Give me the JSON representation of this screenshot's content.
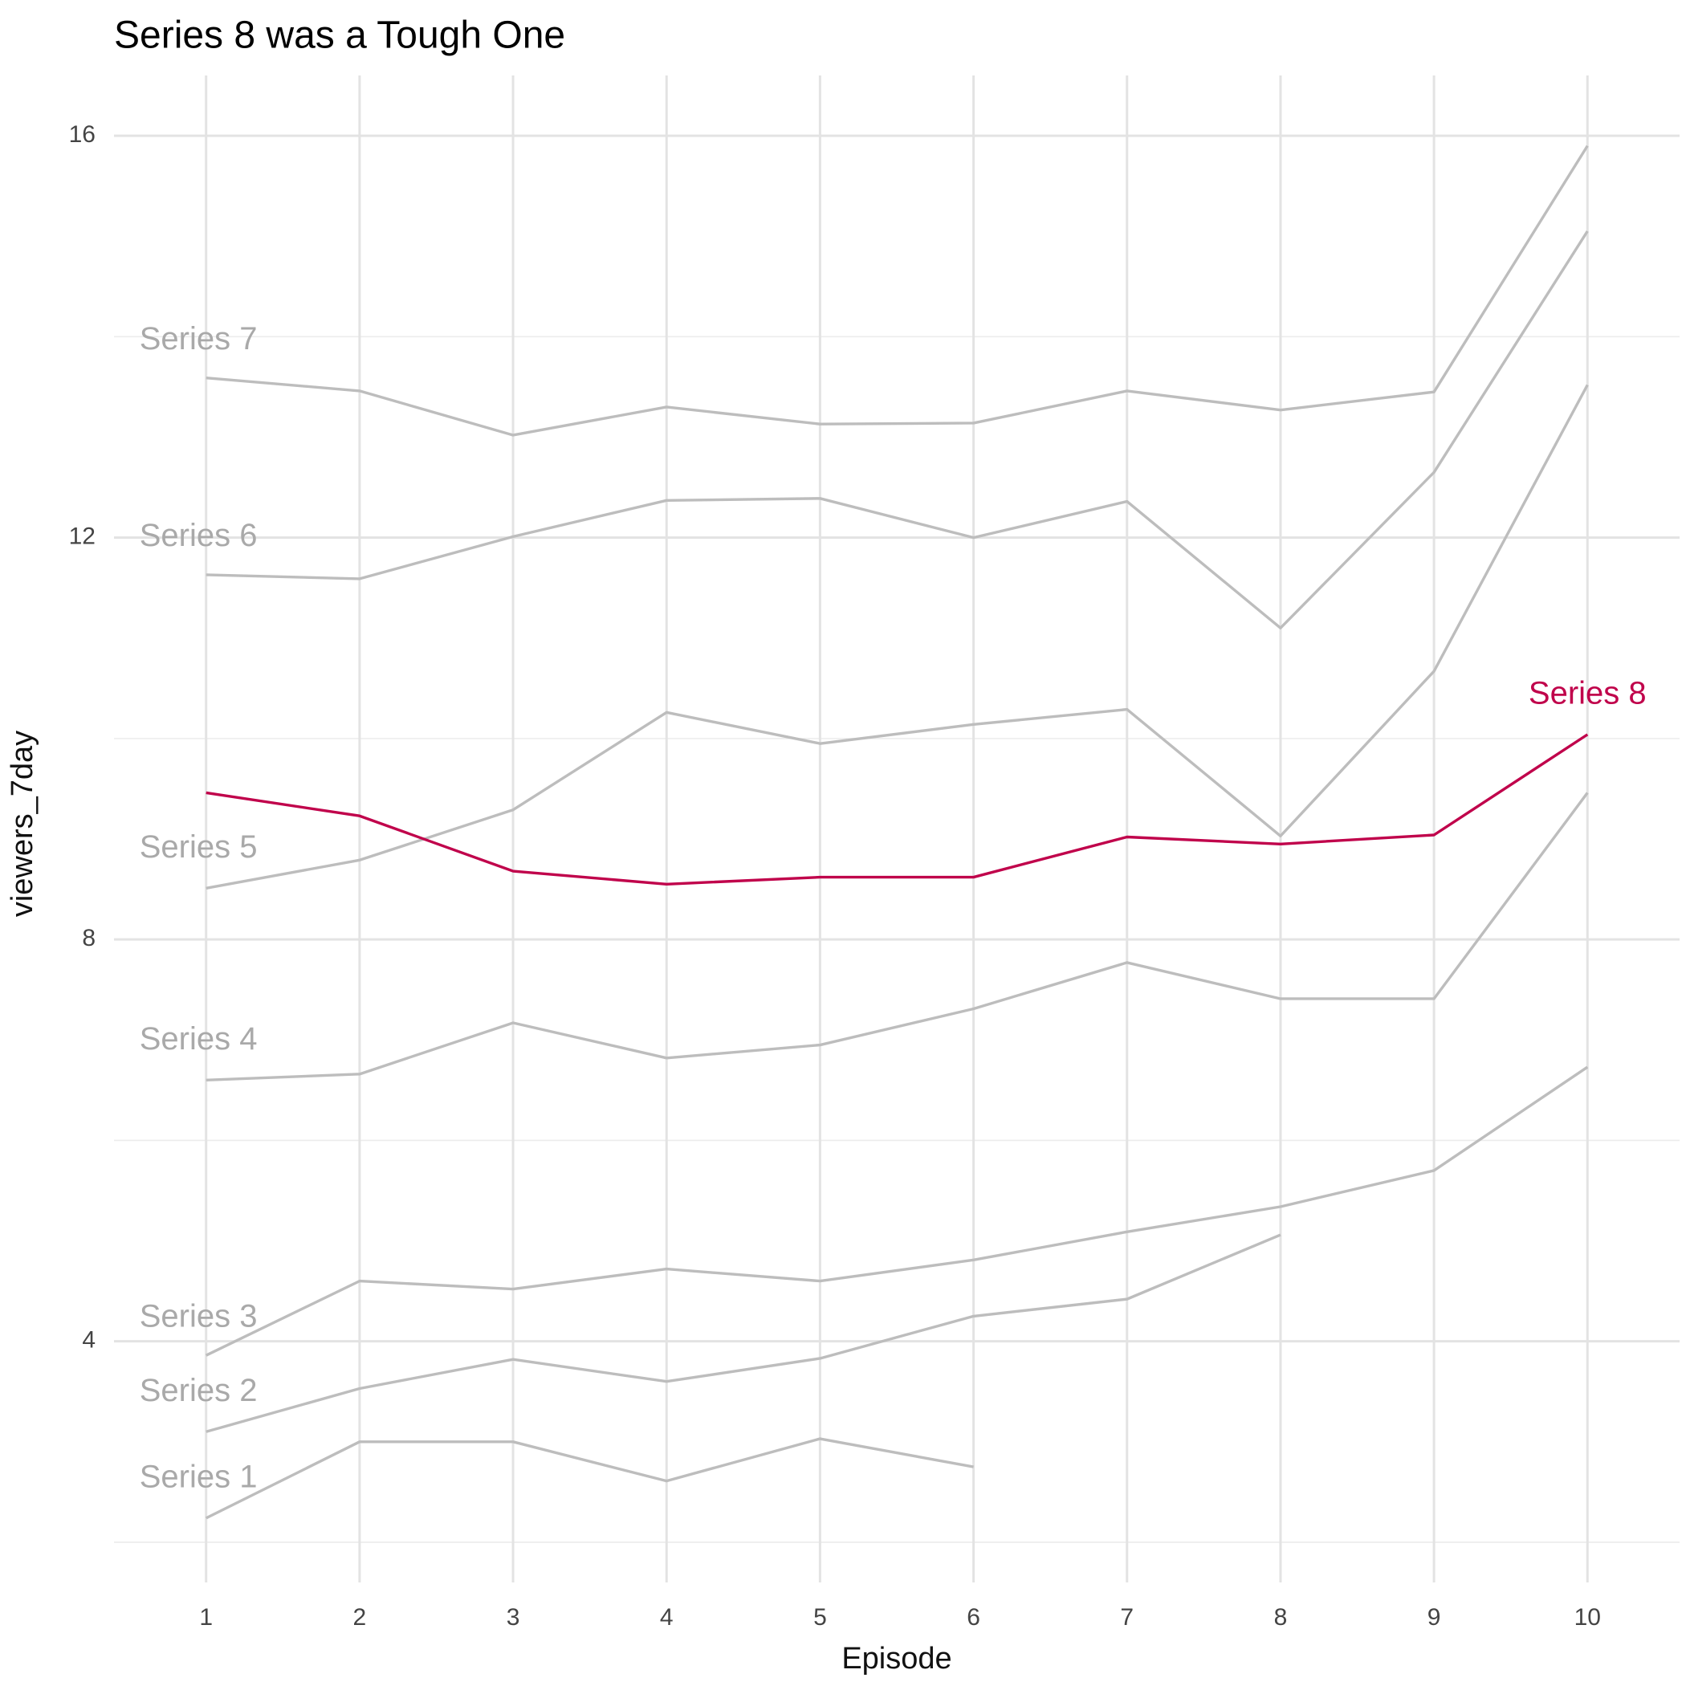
{
  "chart_data": {
    "type": "line",
    "title": "Series 8 was a Tough One",
    "x_label": "Episode",
    "y_label": "viewers_7day",
    "x": [
      1,
      2,
      3,
      4,
      5,
      6,
      7,
      8,
      9,
      10
    ],
    "xlim": [
      0.4,
      10.6
    ],
    "xticks": [
      1,
      2,
      3,
      4,
      5,
      6,
      7,
      8,
      9,
      10
    ],
    "ylim": [
      1.6,
      16.6
    ],
    "yticks": [
      4,
      8,
      12,
      16
    ],
    "y_minor_ticks": [
      2,
      6,
      10,
      14
    ],
    "grid": true,
    "series": [
      {
        "name": "Series 1",
        "color": "#bdbdbd",
        "label_color": "#a9a9a9",
        "label_at": [
          1,
          2.63
        ],
        "values": [
          2.24,
          3.0,
          3.0,
          2.61,
          3.03,
          2.75,
          null,
          null,
          null,
          null
        ]
      },
      {
        "name": "Series 2",
        "color": "#bdbdbd",
        "label_color": "#a9a9a9",
        "label_at": [
          1,
          3.49
        ],
        "values": [
          3.1,
          3.53,
          3.82,
          3.6,
          3.83,
          4.25,
          4.42,
          5.06,
          null,
          null
        ]
      },
      {
        "name": "Series 3",
        "color": "#bdbdbd",
        "label_color": "#a9a9a9",
        "label_at": [
          1,
          4.23
        ],
        "values": [
          3.86,
          4.6,
          4.52,
          4.72,
          4.6,
          4.81,
          5.09,
          5.34,
          5.7,
          6.73
        ]
      },
      {
        "name": "Series 4",
        "color": "#bdbdbd",
        "label_color": "#a9a9a9",
        "label_at": [
          1,
          6.99
        ],
        "values": [
          6.6,
          6.66,
          7.17,
          6.82,
          6.95,
          7.31,
          7.77,
          7.41,
          7.41,
          9.46
        ]
      },
      {
        "name": "Series 5",
        "color": "#bdbdbd",
        "label_color": "#a9a9a9",
        "label_at": [
          1,
          8.9
        ],
        "values": [
          8.51,
          8.79,
          9.29,
          10.26,
          9.95,
          10.14,
          10.29,
          9.03,
          10.67,
          13.52
        ]
      },
      {
        "name": "Series 6",
        "color": "#bdbdbd",
        "label_color": "#a9a9a9",
        "label_at": [
          1,
          12.0
        ],
        "values": [
          11.63,
          11.59,
          12.01,
          12.37,
          12.39,
          12.0,
          12.36,
          11.1,
          12.65,
          15.05
        ]
      },
      {
        "name": "Series 7",
        "color": "#bdbdbd",
        "label_color": "#a9a9a9",
        "label_at": [
          1,
          13.96
        ],
        "values": [
          13.59,
          13.46,
          13.02,
          13.3,
          13.13,
          13.14,
          13.46,
          13.27,
          13.45,
          15.9
        ]
      },
      {
        "name": "Series 8",
        "color": "#c0024b",
        "label_color": "#c0024b",
        "label_at": [
          10,
          10.43
        ],
        "label_anchor": "middle",
        "values": [
          9.46,
          9.23,
          8.68,
          8.55,
          8.62,
          8.62,
          9.02,
          8.95,
          9.04,
          10.04
        ]
      }
    ]
  }
}
